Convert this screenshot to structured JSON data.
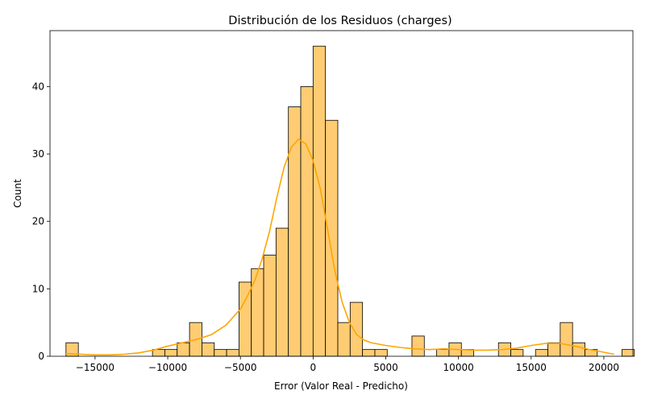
{
  "chart_data": {
    "type": "bar",
    "subtype": "histogram-with-kde",
    "title": "Distribución de los Residuos (charges)",
    "xlabel": "Error (Valor Real - Predicho)",
    "ylabel": "Count",
    "xlim": [
      -18100,
      22000
    ],
    "ylim": [
      0,
      48.3
    ],
    "xticks": [
      -15000,
      -10000,
      -5000,
      0,
      5000,
      10000,
      15000,
      20000
    ],
    "yticks": [
      0,
      10,
      20,
      30,
      40
    ],
    "grid": false,
    "colors": {
      "bar_fill": "#FFCC73",
      "bar_edge": "#000000",
      "kde_line": "#FFA500"
    },
    "bins": {
      "start": -17000,
      "width": 850,
      "counts": [
        2,
        0,
        0,
        0,
        0,
        0,
        0,
        1,
        1,
        2,
        5,
        2,
        1,
        1,
        11,
        13,
        15,
        19,
        37,
        40,
        46,
        35,
        5,
        8,
        1,
        1,
        0,
        0,
        3,
        0,
        1,
        2,
        1,
        0,
        0,
        2,
        1,
        0,
        1,
        2,
        5,
        2,
        1,
        0,
        0,
        1
      ]
    },
    "kde": {
      "x": [
        -17000,
        -16000,
        -15000,
        -14000,
        -13000,
        -12000,
        -11000,
        -10000,
        -9000,
        -8000,
        -7000,
        -6000,
        -5000,
        -4500,
        -4000,
        -3500,
        -3000,
        -2500,
        -2000,
        -1500,
        -1000,
        -500,
        0,
        500,
        1000,
        1500,
        2000,
        2500,
        3000,
        3500,
        4000,
        5000,
        6000,
        7000,
        8000,
        9000,
        10000,
        11000,
        12000,
        13000,
        14000,
        15000,
        16000,
        17000,
        18000,
        19000,
        20000,
        20700
      ],
      "y": [
        0.4,
        0.3,
        0.2,
        0.2,
        0.3,
        0.5,
        0.9,
        1.5,
        2.0,
        2.5,
        3.2,
        4.6,
        7.0,
        9.0,
        11.3,
        14.5,
        18.5,
        23.5,
        28.0,
        31.0,
        32.2,
        31.5,
        29.0,
        24.8,
        18.8,
        12.6,
        8.0,
        5.0,
        3.2,
        2.4,
        2.0,
        1.6,
        1.3,
        1.1,
        1.0,
        1.1,
        1.0,
        0.9,
        0.9,
        1.0,
        1.2,
        1.6,
        1.9,
        1.9,
        1.5,
        1.0,
        0.6,
        0.3
      ]
    }
  }
}
